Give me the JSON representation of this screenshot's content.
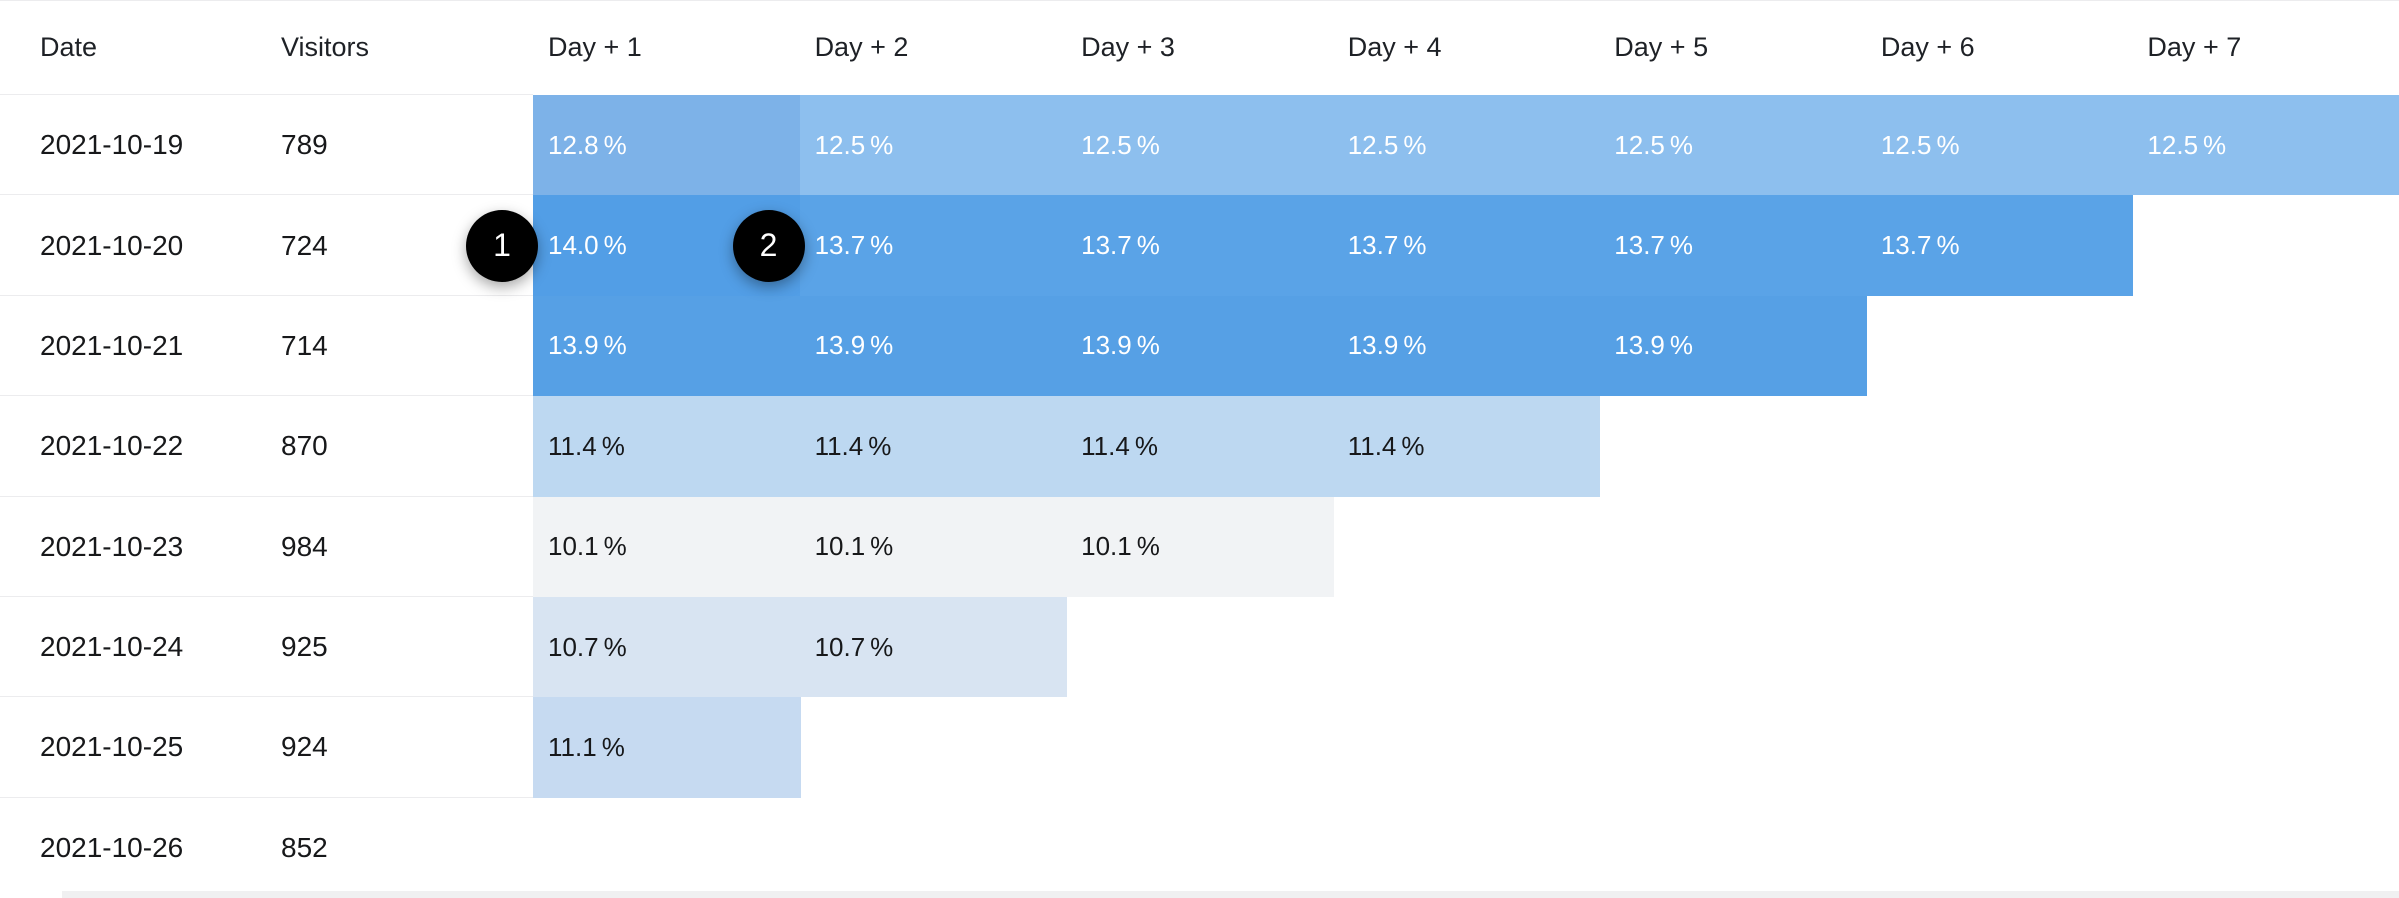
{
  "table": {
    "columns": [
      {
        "label": "Date"
      },
      {
        "label": "Visitors"
      },
      {
        "label": "Day + 1"
      },
      {
        "label": "Day + 2"
      },
      {
        "label": "Day + 3"
      },
      {
        "label": "Day + 4"
      },
      {
        "label": "Day + 5"
      },
      {
        "label": "Day + 6"
      },
      {
        "label": "Day + 7"
      }
    ],
    "unit": "%",
    "rows": [
      {
        "date": "2021-10-19",
        "visitors": "789",
        "cells": [
          {
            "value": "12.8",
            "bg": "#7DB2E8",
            "fg": "#FFFFFF"
          },
          {
            "value": "12.5",
            "bg": "#8DBFEE",
            "fg": "#FFFFFF"
          },
          {
            "value": "12.5",
            "bg": "#8DBFEE",
            "fg": "#FFFFFF"
          },
          {
            "value": "12.5",
            "bg": "#8DBFEE",
            "fg": "#FFFFFF"
          },
          {
            "value": "12.5",
            "bg": "#8DBFEE",
            "fg": "#FFFFFF"
          },
          {
            "value": "12.5",
            "bg": "#8DBFEE",
            "fg": "#FFFFFF"
          },
          {
            "value": "12.5",
            "bg": "#8DBFEE",
            "fg": "#FFFFFF"
          }
        ]
      },
      {
        "date": "2021-10-20",
        "visitors": "724",
        "cells": [
          {
            "value": "14.0",
            "bg": "#529EE6",
            "fg": "#FFFFFF"
          },
          {
            "value": "13.7",
            "bg": "#5AA3E7",
            "fg": "#FFFFFF"
          },
          {
            "value": "13.7",
            "bg": "#5AA3E7",
            "fg": "#FFFFFF"
          },
          {
            "value": "13.7",
            "bg": "#5AA3E7",
            "fg": "#FFFFFF"
          },
          {
            "value": "13.7",
            "bg": "#5AA3E7",
            "fg": "#FFFFFF"
          },
          {
            "value": "13.7",
            "bg": "#5AA3E7",
            "fg": "#FFFFFF"
          }
        ]
      },
      {
        "date": "2021-10-21",
        "visitors": "714",
        "cells": [
          {
            "value": "13.9",
            "bg": "#56A0E5",
            "fg": "#FFFFFF"
          },
          {
            "value": "13.9",
            "bg": "#56A0E5",
            "fg": "#FFFFFF"
          },
          {
            "value": "13.9",
            "bg": "#56A0E5",
            "fg": "#FFFFFF"
          },
          {
            "value": "13.9",
            "bg": "#56A0E5",
            "fg": "#FFFFFF"
          },
          {
            "value": "13.9",
            "bg": "#56A0E5",
            "fg": "#FFFFFF"
          }
        ]
      },
      {
        "date": "2021-10-22",
        "visitors": "870",
        "cells": [
          {
            "value": "11.4",
            "bg": "#BDD8F1",
            "fg": "#17181A"
          },
          {
            "value": "11.4",
            "bg": "#BDD8F1",
            "fg": "#17181A"
          },
          {
            "value": "11.4",
            "bg": "#BDD8F1",
            "fg": "#17181A"
          },
          {
            "value": "11.4",
            "bg": "#BDD8F1",
            "fg": "#17181A"
          }
        ]
      },
      {
        "date": "2021-10-23",
        "visitors": "984",
        "cells": [
          {
            "value": "10.1",
            "bg": "#F1F3F5",
            "fg": "#17181A"
          },
          {
            "value": "10.1",
            "bg": "#F1F3F5",
            "fg": "#17181A"
          },
          {
            "value": "10.1",
            "bg": "#F1F3F5",
            "fg": "#17181A"
          }
        ]
      },
      {
        "date": "2021-10-24",
        "visitors": "925",
        "cells": [
          {
            "value": "10.7",
            "bg": "#D8E4F2",
            "fg": "#17181A"
          },
          {
            "value": "10.7",
            "bg": "#D8E4F2",
            "fg": "#17181A"
          }
        ]
      },
      {
        "date": "2021-10-25",
        "visitors": "924",
        "cells": [
          {
            "value": "11.1",
            "bg": "#C6DAF1",
            "fg": "#17181A"
          }
        ]
      },
      {
        "date": "2021-10-26",
        "visitors": "852",
        "cells": []
      }
    ]
  },
  "annotations": [
    {
      "label": "1",
      "target": {
        "row": 1,
        "col": 0
      }
    },
    {
      "label": "2",
      "target": {
        "row": 1,
        "col": 1
      }
    }
  ],
  "colors": {
    "background": "#FFFFFF",
    "header_text": "#1E2126",
    "body_text": "#17181A",
    "hairline": "#ECECEE",
    "badge_bg": "#000000",
    "badge_text": "#FFFFFF",
    "scrollbar_track": "#F0F0F1"
  }
}
